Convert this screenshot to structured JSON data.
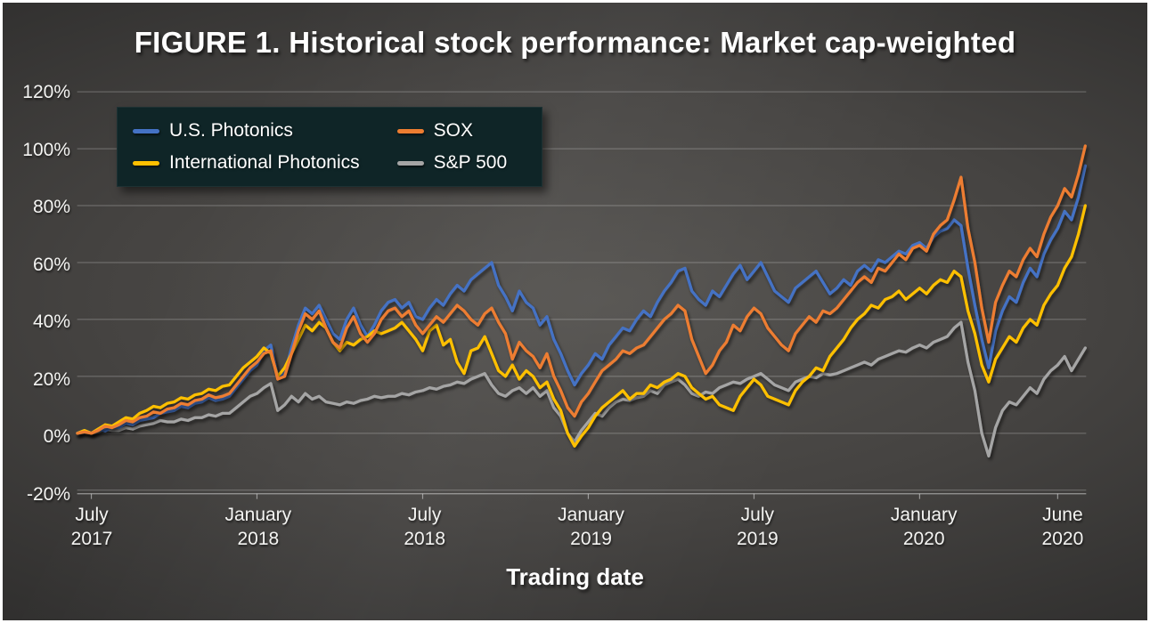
{
  "chart_data": {
    "type": "line",
    "title": "FIGURE 1. Historical stock performance: Market cap-weighted",
    "xlabel": "Trading date",
    "ylabel": "",
    "ylim": [
      -20,
      120
    ],
    "grid": "horizontal",
    "legend_position": "top-left",
    "y_ticks": [
      {
        "label": "120%",
        "value": 120
      },
      {
        "label": "100%",
        "value": 100
      },
      {
        "label": "80%",
        "value": 80
      },
      {
        "label": "60%",
        "value": 60
      },
      {
        "label": "40%",
        "value": 40
      },
      {
        "label": "20%",
        "value": 20
      },
      {
        "label": "0%",
        "value": 0
      },
      {
        "label": "-20%",
        "value": -20
      }
    ],
    "x_ticks": [
      {
        "line1": "July",
        "line2": "2017",
        "month": 0
      },
      {
        "line1": "January",
        "line2": "2018",
        "month": 6
      },
      {
        "line1": "July",
        "line2": "2018",
        "month": 12
      },
      {
        "line1": "January",
        "line2": "2019",
        "month": 18
      },
      {
        "line1": "July",
        "line2": "2019",
        "month": 24
      },
      {
        "line1": "January",
        "line2": "2020",
        "month": 30
      },
      {
        "line1": "June",
        "line2": "2020",
        "month": 35
      }
    ],
    "x_unit": "months after July 2017 tick",
    "x_start_month": -0.5,
    "x_step_month": 0.25,
    "draw_order": [
      3,
      0,
      1,
      2
    ],
    "series": [
      {
        "name": "U.S. Photonics",
        "color": "#4472C4",
        "values": [
          0,
          1,
          0,
          1.5,
          0.8,
          2.2,
          2,
          3.5,
          3,
          4.5,
          5,
          5.5,
          7,
          7.5,
          8,
          9.5,
          9,
          10.5,
          11,
          12.5,
          11.5,
          12,
          13,
          16,
          19,
          22,
          24,
          29,
          31,
          20,
          21,
          30,
          38,
          44,
          42,
          45,
          40,
          35,
          33,
          40,
          44,
          38,
          34,
          38,
          43,
          46,
          47,
          44,
          46,
          41,
          40,
          44,
          47,
          45,
          49,
          52,
          50,
          54,
          56,
          58,
          60,
          52,
          48,
          43,
          50,
          46,
          44,
          38,
          41,
          33,
          28,
          22,
          17,
          21,
          24,
          28,
          26,
          31,
          34,
          37,
          36,
          40,
          43,
          41,
          46,
          50,
          53,
          57,
          58,
          50,
          47,
          45,
          50,
          48,
          52,
          56,
          59,
          54,
          57,
          60,
          55,
          50,
          48,
          46,
          51,
          53,
          55,
          57,
          53,
          49,
          51,
          54,
          52,
          57,
          59,
          57,
          61,
          60,
          62,
          64,
          63,
          66,
          67,
          65,
          69,
          71,
          72,
          75,
          73,
          58,
          45,
          33,
          23,
          36,
          43,
          48,
          46,
          53,
          58,
          55,
          63,
          68,
          72,
          78,
          75,
          83,
          94
        ]
      },
      {
        "name": "International Photonics",
        "color": "#FFC000",
        "values": [
          0,
          1,
          0,
          1.5,
          3,
          2.5,
          4,
          5.5,
          5,
          7,
          8,
          9.5,
          9,
          10.5,
          11,
          12.5,
          12,
          13.5,
          14,
          15.5,
          15,
          16.5,
          17,
          20,
          23,
          25,
          27,
          30,
          28,
          20,
          23,
          28,
          33,
          38,
          36,
          39,
          37,
          32,
          29,
          32,
          31,
          33,
          34,
          36,
          35,
          36,
          37,
          39,
          36,
          33,
          29,
          36,
          38,
          31,
          33,
          25,
          21,
          29,
          30,
          34,
          28,
          22,
          20,
          24,
          19,
          22,
          20,
          16,
          18,
          12,
          8,
          0,
          -4.5,
          -1,
          2,
          6,
          9,
          11,
          13,
          15,
          12,
          14,
          14,
          17,
          16,
          18,
          19,
          21,
          20,
          16,
          14,
          12,
          13,
          10,
          9,
          8,
          13,
          16,
          19,
          17,
          13,
          12,
          11,
          10,
          15,
          18,
          20,
          23,
          22,
          27,
          30,
          33,
          37,
          40,
          42,
          45,
          44,
          47,
          48,
          50,
          47,
          49,
          51,
          49,
          52,
          54,
          53,
          57,
          55,
          43,
          35,
          24,
          18,
          26,
          30,
          34,
          32,
          37,
          40,
          38,
          45,
          49,
          52,
          58,
          62,
          70,
          80
        ]
      },
      {
        "name": "SOX",
        "color": "#ED7D31",
        "values": [
          0,
          0.5,
          0,
          1,
          2.5,
          2,
          3,
          4.5,
          4,
          5.5,
          6,
          7.5,
          7,
          8.5,
          9,
          10.5,
          10,
          11.5,
          12,
          13.5,
          12.5,
          13,
          14,
          17,
          20,
          23,
          25,
          28,
          29,
          19,
          20,
          28,
          36,
          42,
          40,
          43,
          37,
          32,
          30,
          37,
          41,
          35,
          32,
          35,
          40,
          43,
          44,
          41,
          43,
          38,
          35,
          38,
          41,
          39,
          42,
          45,
          43,
          40,
          38,
          42,
          44,
          39,
          35,
          26,
          32,
          29,
          27,
          23,
          28,
          20,
          15,
          9,
          6,
          11,
          14,
          18,
          22,
          24,
          26,
          29,
          28,
          30,
          31,
          34,
          37,
          40,
          42,
          45,
          43,
          33,
          27,
          21,
          24,
          29,
          32,
          38,
          36,
          41,
          44,
          42,
          37,
          34,
          31,
          29,
          35,
          38,
          41,
          39,
          43,
          42,
          44,
          47,
          50,
          53,
          55,
          53,
          58,
          57,
          60,
          63,
          61,
          65,
          66,
          64,
          70,
          73,
          75,
          82,
          90,
          72,
          60,
          44,
          32,
          46,
          52,
          57,
          55,
          61,
          65,
          62,
          70,
          76,
          80,
          86,
          83,
          91,
          101
        ]
      },
      {
        "name": "S&P 500",
        "color": "#A5A5A5",
        "values": [
          0,
          0.3,
          0,
          0.5,
          1.5,
          1,
          1,
          2,
          1.5,
          2.5,
          3,
          3.5,
          4.5,
          4,
          4,
          5,
          4.5,
          5.5,
          5.5,
          6.5,
          6,
          7,
          7,
          9,
          11,
          13,
          14,
          16,
          17.5,
          8,
          10,
          13,
          11,
          14,
          12,
          13,
          11,
          10.5,
          10,
          11,
          10.5,
          11.5,
          12,
          13,
          12.5,
          13,
          13,
          14,
          13.5,
          14.5,
          15,
          16,
          15.5,
          16.5,
          17,
          18,
          17.5,
          19,
          20,
          21,
          17,
          14,
          13,
          15,
          16,
          14,
          16,
          13,
          15,
          9,
          6,
          0,
          -3,
          1,
          4,
          7,
          6,
          9,
          11,
          12,
          11.5,
          12.5,
          13,
          15,
          14,
          17,
          18,
          19,
          17,
          14,
          13,
          14.5,
          14,
          16,
          17,
          18,
          17.5,
          19,
          20,
          21,
          19,
          17,
          16,
          15,
          18,
          19,
          20,
          19.5,
          21,
          20.5,
          21,
          22,
          23,
          24,
          25,
          24,
          26,
          27,
          28,
          29,
          28.5,
          30,
          31,
          30,
          32,
          33,
          34,
          37,
          39,
          25,
          15,
          0,
          -8,
          2,
          8,
          11,
          10,
          13,
          16,
          14,
          19,
          22,
          24,
          27,
          22,
          26,
          30
        ]
      }
    ]
  },
  "legend": {
    "order": [
      0,
      2,
      1,
      3
    ]
  },
  "colors": {
    "legend_background": "#0F2527",
    "frame": "#FFFFFF",
    "text": "#FFFFFF",
    "background_center": "#555350",
    "background_edge": "#262523",
    "gridline": "#9A9A9A"
  }
}
